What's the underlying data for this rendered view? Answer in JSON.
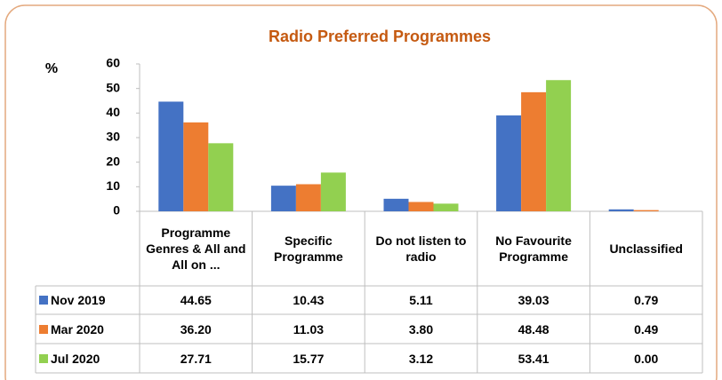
{
  "chart_data": {
    "type": "bar",
    "title": "Radio Preferred Programmes",
    "y_label": "%",
    "categories": [
      "Programme Genres & All and All on ...",
      "Specific Programme",
      "Do not listen to radio",
      "No Favourite Programme",
      "Unclassified"
    ],
    "series": [
      {
        "name": "Nov 2019",
        "color": "#4472c4",
        "values": [
          44.65,
          10.43,
          5.11,
          39.03,
          0.79
        ],
        "value_labels": [
          "44.65",
          "10.43",
          "5.11",
          "39.03",
          "0.79"
        ]
      },
      {
        "name": "Mar 2020",
        "color": "#ed7d31",
        "values": [
          36.2,
          11.03,
          3.8,
          48.48,
          0.49
        ],
        "value_labels": [
          "36.20",
          "11.03",
          "3.80",
          "48.48",
          "0.49"
        ]
      },
      {
        "name": "Jul 2020",
        "color": "#92d050",
        "values": [
          27.71,
          15.77,
          3.12,
          53.41,
          0
        ],
        "value_labels": [
          "27.71",
          "15.77",
          "3.12",
          "53.41",
          "0.00"
        ]
      }
    ],
    "ylim": [
      0,
      60
    ],
    "yticks": [
      0,
      10,
      20,
      30,
      40,
      50,
      60
    ]
  }
}
